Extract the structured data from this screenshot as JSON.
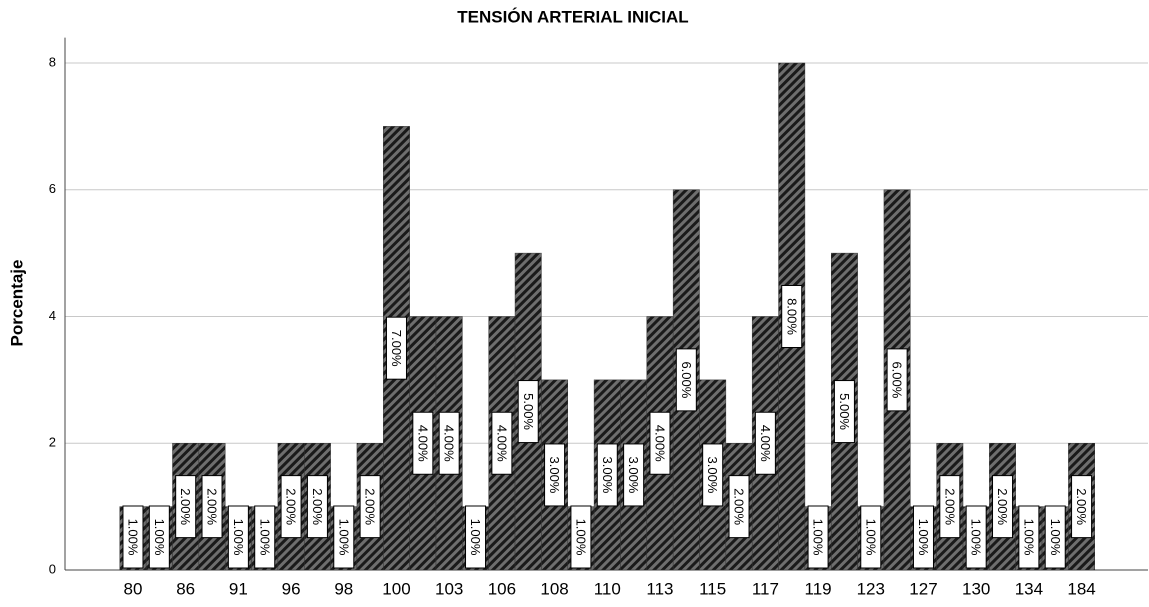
{
  "chart_data": {
    "type": "bar",
    "title": "TENSIÓN ARTERIAL INICIAL",
    "y_label": "Porcentaje",
    "categories": [
      "80",
      null,
      "86",
      null,
      "91",
      null,
      "96",
      null,
      "98",
      null,
      "100",
      null,
      "103",
      null,
      "106",
      null,
      "108",
      null,
      "110",
      null,
      "113",
      null,
      "115",
      null,
      "117",
      null,
      "119",
      null,
      "123",
      null,
      "127",
      null,
      "130",
      null,
      "134",
      null,
      "184"
    ],
    "values": [
      1,
      1,
      2,
      2,
      1,
      1,
      2,
      2,
      1,
      2,
      7,
      4,
      4,
      1,
      4,
      5,
      3,
      1,
      3,
      3,
      4,
      6,
      3,
      2,
      4,
      8,
      1,
      5,
      1,
      6,
      1,
      2,
      1,
      2,
      1,
      1,
      2
    ],
    "value_labels": [
      "1.00%",
      "1.00%",
      "2.00%",
      "2.00%",
      "1.00%",
      "1.00%",
      "2.00%",
      "2.00%",
      "1.00%",
      "2.00%",
      "7.00%",
      "4.00%",
      "4.00%",
      "1.00%",
      "4.00%",
      "5.00%",
      "3.00%",
      "1.00%",
      "3.00%",
      "3.00%",
      "4.00%",
      "6.00%",
      "3.00%",
      "2.00%",
      "4.00%",
      "8.00%",
      "1.00%",
      "5.00%",
      "1.00%",
      "6.00%",
      "1.00%",
      "2.00%",
      "1.00%",
      "2.00%",
      "1.00%",
      "1.00%",
      "2.00%"
    ],
    "color": "#5a5a5a",
    "ylim": [
      0,
      8.4
    ],
    "yticks": [
      0,
      2,
      4,
      6,
      8
    ],
    "grid": true
  }
}
